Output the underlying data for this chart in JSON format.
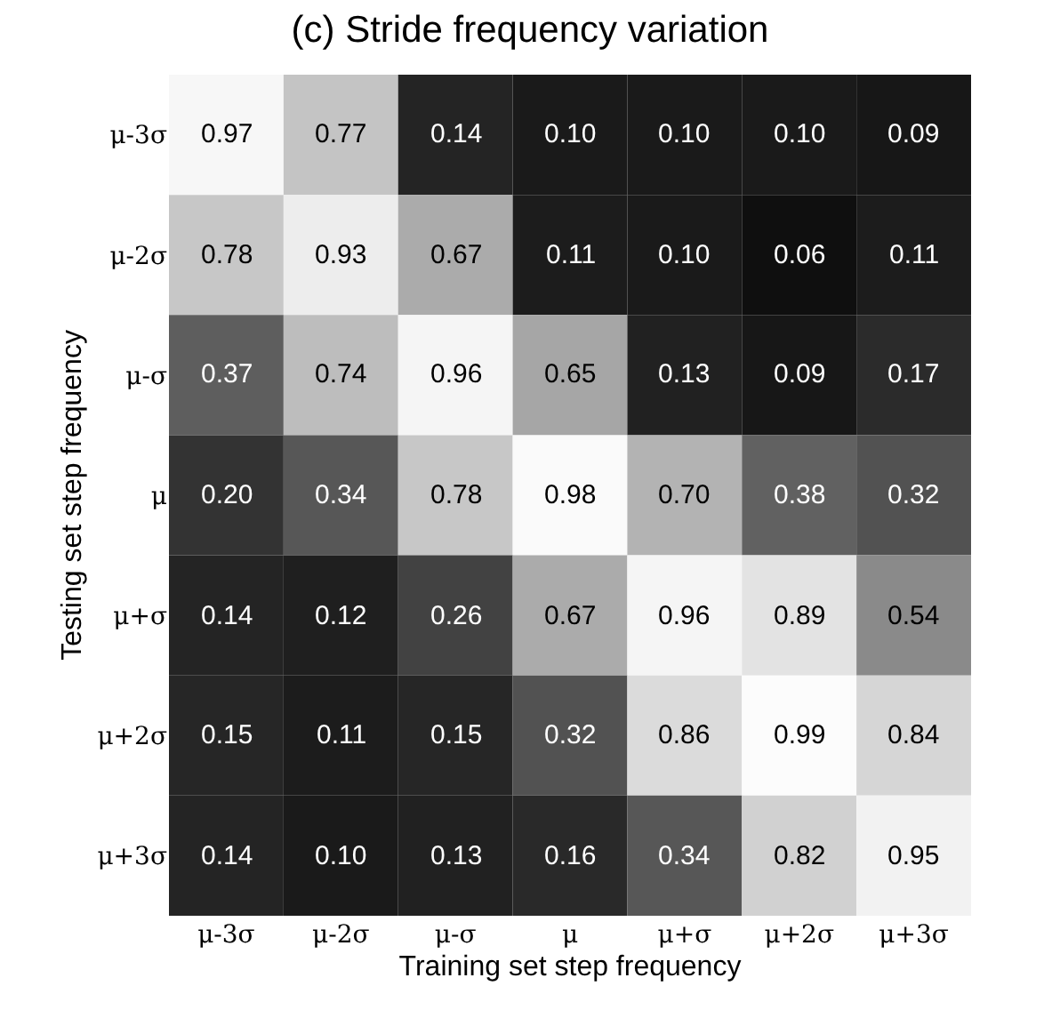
{
  "chart_data": {
    "type": "heatmap",
    "title": "(c) Stride frequency variation",
    "xlabel": "Training set step frequency",
    "ylabel": "Testing set step frequency",
    "categories": [
      "μ-3σ",
      "μ-2σ",
      "μ-σ",
      "μ",
      "μ+σ",
      "μ+2σ",
      "μ+3σ"
    ],
    "y_categories": [
      "μ-3σ",
      "μ-2σ",
      "μ-σ",
      "μ",
      "μ+σ",
      "μ+2σ",
      "μ+3σ"
    ],
    "cells": [
      [
        0.97,
        0.77,
        0.14,
        0.1,
        0.1,
        0.1,
        0.09
      ],
      [
        0.78,
        0.93,
        0.67,
        0.11,
        0.1,
        0.06,
        0.11
      ],
      [
        0.37,
        0.74,
        0.96,
        0.65,
        0.13,
        0.09,
        0.17
      ],
      [
        0.2,
        0.34,
        0.78,
        0.98,
        0.7,
        0.38,
        0.32
      ],
      [
        0.14,
        0.12,
        0.26,
        0.67,
        0.96,
        0.89,
        0.54
      ],
      [
        0.15,
        0.11,
        0.15,
        0.32,
        0.86,
        0.99,
        0.84
      ],
      [
        0.14,
        0.1,
        0.13,
        0.16,
        0.34,
        0.82,
        0.95
      ]
    ],
    "cell_labels": [
      [
        "0.97",
        "0.77",
        "0.14",
        "0.10",
        "0.10",
        "0.10",
        "0.09"
      ],
      [
        "0.78",
        "0.93",
        "0.67",
        "0.11",
        "0.10",
        "0.06",
        "0.11"
      ],
      [
        "0.37",
        "0.74",
        "0.96",
        "0.65",
        "0.13",
        "0.09",
        "0.17"
      ],
      [
        "0.20",
        "0.34",
        "0.78",
        "0.98",
        "0.70",
        "0.38",
        "0.32"
      ],
      [
        "0.14",
        "0.12",
        "0.26",
        "0.67",
        "0.96",
        "0.89",
        "0.54"
      ],
      [
        "0.15",
        "0.11",
        "0.15",
        "0.32",
        "0.86",
        "0.99",
        "0.84"
      ],
      [
        "0.14",
        "0.10",
        "0.13",
        "0.16",
        "0.34",
        "0.82",
        "0.95"
      ]
    ]
  }
}
